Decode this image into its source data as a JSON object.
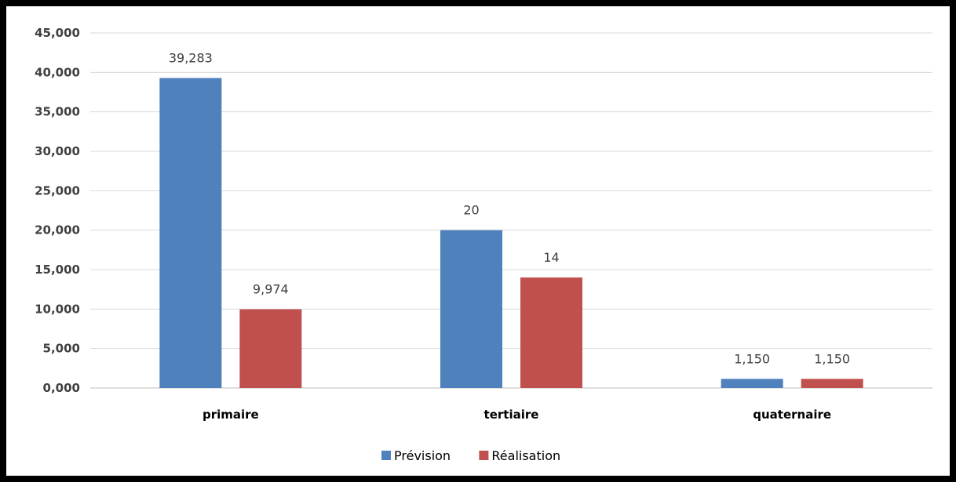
{
  "chart_data": {
    "type": "bar",
    "categories": [
      "primaire",
      "tertiaire",
      "quaternaire"
    ],
    "series": [
      {
        "name": "Prévision",
        "color": "#4f81bd",
        "values": [
          39.283,
          20,
          1.15
        ],
        "labels": [
          "39,283",
          "20",
          "1,150"
        ]
      },
      {
        "name": "Réalisation",
        "color": "#c0504d",
        "values": [
          9.974,
          14,
          1.15
        ],
        "labels": [
          "9,974",
          "14",
          "1,150"
        ]
      }
    ],
    "ylim": [
      0,
      45
    ],
    "yticks": [
      0,
      5,
      10,
      15,
      20,
      25,
      30,
      35,
      40,
      45
    ],
    "ytick_labels": [
      "0,000",
      "5,000",
      "10,000",
      "15,000",
      "20,000",
      "25,000",
      "30,000",
      "35,000",
      "40,000",
      "45,000"
    ],
    "title": "",
    "xlabel": "",
    "ylabel": "",
    "grid": true,
    "legend_position": "bottom"
  }
}
